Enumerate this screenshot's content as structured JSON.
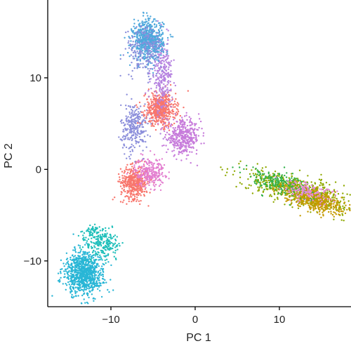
{
  "chart_data": {
    "type": "scatter",
    "title": "",
    "xlabel": "PC 1",
    "ylabel": "PC 2",
    "xlim": [
      -17.5,
      18.5
    ],
    "ylim": [
      -15,
      18.5
    ],
    "xticks": [
      -10,
      0,
      10
    ],
    "xtick_labels": [
      "−10",
      "0",
      "10"
    ],
    "yticks": [
      -10,
      0,
      10
    ],
    "ytick_labels": [
      "−10",
      "0",
      "10"
    ],
    "grid": false,
    "legend": "none",
    "clusters": [
      {
        "color": "#29B6D6",
        "center": [
          -13.2,
          -11.4
        ],
        "spread": [
          1.1,
          1.2
        ],
        "angle_deg": 40,
        "count": 900
      },
      {
        "color": "#1FBFBA",
        "center": [
          -11.2,
          -7.8
        ],
        "spread": [
          0.9,
          1.2
        ],
        "angle_deg": 55,
        "count": 260
      },
      {
        "color": "#F8766D",
        "center": [
          -7.2,
          -1.4
        ],
        "spread": [
          0.8,
          0.9
        ],
        "angle_deg": 0,
        "count": 450
      },
      {
        "color": "#E37FD0",
        "center": [
          -5.4,
          -0.3
        ],
        "spread": [
          0.9,
          0.8
        ],
        "angle_deg": 0,
        "count": 250
      },
      {
        "color": "#8C8FDB",
        "center": [
          -7.2,
          4.6
        ],
        "spread": [
          0.8,
          1.3
        ],
        "angle_deg": 0,
        "count": 280
      },
      {
        "color": "#F8766D",
        "center": [
          -4.1,
          6.6
        ],
        "spread": [
          0.9,
          0.9
        ],
        "angle_deg": 0,
        "count": 550
      },
      {
        "color": "#C77CDB",
        "center": [
          -1.4,
          3.5
        ],
        "spread": [
          1.0,
          0.9
        ],
        "angle_deg": 0,
        "count": 400
      },
      {
        "color": "#B683E0",
        "center": [
          -3.9,
          10.2
        ],
        "spread": [
          0.6,
          2.0
        ],
        "angle_deg": 0,
        "count": 280
      },
      {
        "color": "#4FA8DC",
        "center": [
          -5.6,
          14.1
        ],
        "spread": [
          0.9,
          1.1
        ],
        "angle_deg": 0,
        "count": 650
      },
      {
        "color": "#8C8FDB",
        "center": [
          -6.0,
          13.0
        ],
        "spread": [
          1.1,
          1.4
        ],
        "angle_deg": 0,
        "count": 200
      },
      {
        "color": "#8FA900",
        "center": [
          12.3,
          -2.3
        ],
        "spread": [
          3.0,
          0.7
        ],
        "angle_deg": -14,
        "count": 650
      },
      {
        "color": "#C49A00",
        "center": [
          14.2,
          -3.3
        ],
        "spread": [
          1.8,
          0.6
        ],
        "angle_deg": -14,
        "count": 450
      },
      {
        "color": "#33B24A",
        "center": [
          9.8,
          -1.4
        ],
        "spread": [
          2.0,
          0.6
        ],
        "angle_deg": -14,
        "count": 200
      },
      {
        "color": "#E58ADD",
        "center": [
          13.3,
          -2.4
        ],
        "spread": [
          1.6,
          0.5
        ],
        "angle_deg": -14,
        "count": 130
      }
    ]
  }
}
